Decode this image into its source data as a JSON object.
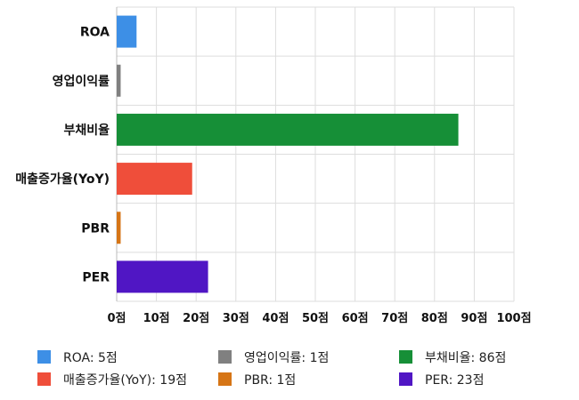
{
  "chart_data": {
    "type": "bar",
    "orientation": "horizontal",
    "categories": [
      "ROA",
      "영업이익률",
      "부채비율",
      "매출증가율(YoY)",
      "PBR",
      "PER"
    ],
    "values": [
      5,
      1,
      86,
      19,
      1,
      23
    ],
    "colors": [
      "#3d8fe6",
      "#808080",
      "#168f37",
      "#ef4e3a",
      "#d67516",
      "#5016c4"
    ],
    "xlim": [
      0,
      100
    ],
    "xticks": [
      0,
      10,
      20,
      30,
      40,
      50,
      60,
      70,
      80,
      90,
      100
    ],
    "tick_labels": [
      "0점",
      "10점",
      "20점",
      "30점",
      "40점",
      "50점",
      "60점",
      "70점",
      "80점",
      "90점",
      "100점"
    ],
    "grid": true,
    "legend_position": "bottom",
    "legend": [
      {
        "label": "ROA: 5점",
        "color": "#3d8fe6"
      },
      {
        "label": "영업이익률: 1점",
        "color": "#808080"
      },
      {
        "label": "부채비율: 86점",
        "color": "#168f37"
      },
      {
        "label": "매출증가율(YoY): 19점",
        "color": "#ef4e3a"
      },
      {
        "label": "PBR: 1점",
        "color": "#d67516"
      },
      {
        "label": "PER: 23점",
        "color": "#5016c4"
      }
    ]
  }
}
